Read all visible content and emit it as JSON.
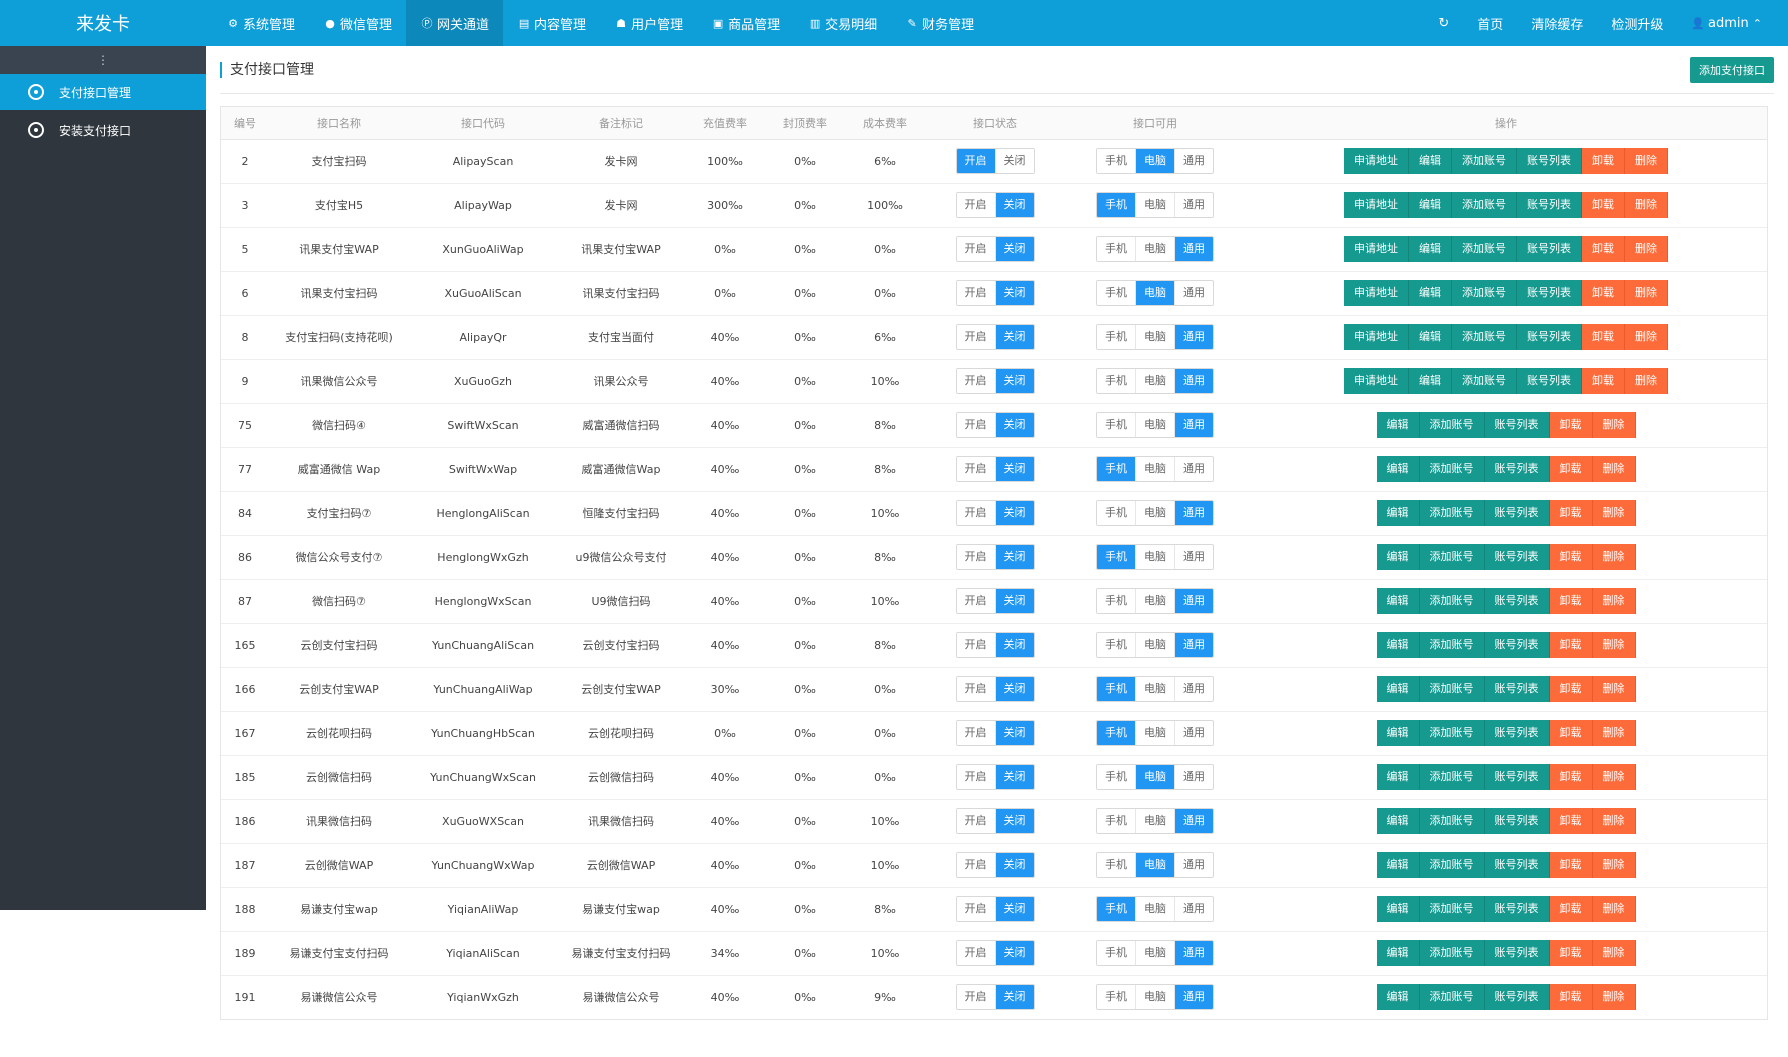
{
  "brand": "来发卡",
  "topnav": [
    {
      "label": "系统管理",
      "icon": "gear-icon",
      "glyph": "⚙",
      "active": false
    },
    {
      "label": "微信管理",
      "icon": "wechat-icon",
      "glyph": "●",
      "active": false
    },
    {
      "label": "网关通道",
      "icon": "paypal-icon",
      "glyph": "Ⓟ",
      "active": true
    },
    {
      "label": "内容管理",
      "icon": "document-icon",
      "glyph": "▤",
      "active": false
    },
    {
      "label": "用户管理",
      "icon": "users-icon",
      "glyph": "☗",
      "active": false
    },
    {
      "label": "商品管理",
      "icon": "shopping-bag-icon",
      "glyph": "▣",
      "active": false
    },
    {
      "label": "交易明细",
      "icon": "bar-chart-icon",
      "glyph": "▥",
      "active": false
    },
    {
      "label": "财务管理",
      "icon": "money-icon",
      "glyph": "✎",
      "active": false
    }
  ],
  "topright": {
    "refresh_glyph": "↻",
    "home": "首页",
    "clear_cache": "清除缓存",
    "check_upgrade": "检测升级",
    "user": "admin",
    "user_glyph": "👤",
    "caret": "⌃"
  },
  "sidebar": {
    "toggle": "⋮",
    "items": [
      {
        "label": "支付接口管理",
        "active": true
      },
      {
        "label": "安装支付接口",
        "active": false
      }
    ]
  },
  "page": {
    "title": "支付接口管理",
    "add_button": "添加支付接口"
  },
  "table": {
    "headers": [
      "编号",
      "接口名称",
      "接口代码",
      "备注标记",
      "充值费率",
      "封顶费率",
      "成本费率",
      "接口状态",
      "接口可用",
      "操作"
    ],
    "status_labels": [
      "开启",
      "关闭"
    ],
    "avail_labels": [
      "手机",
      "电脑",
      "通用"
    ],
    "op_labels": {
      "apply": "申请地址",
      "edit": "编辑",
      "add_account": "添加账号",
      "account_list": "账号列表",
      "uninstall": "卸载",
      "delete": "删除"
    },
    "rows": [
      {
        "id": "2",
        "name": "支付宝扫码",
        "code": "AlipayScan",
        "remark": "发卡网",
        "rate": "100‰",
        "cap": "0‰",
        "cost": "6‰",
        "status": 0,
        "avail": 1,
        "apply": true
      },
      {
        "id": "3",
        "name": "支付宝H5",
        "code": "AlipayWap",
        "remark": "发卡网",
        "rate": "300‰",
        "cap": "0‰",
        "cost": "100‰",
        "status": 1,
        "avail": 0,
        "apply": true
      },
      {
        "id": "5",
        "name": "讯果支付宝WAP",
        "code": "XunGuoAliWap",
        "remark": "讯果支付宝WAP",
        "rate": "0‰",
        "cap": "0‰",
        "cost": "0‰",
        "status": 1,
        "avail": 2,
        "apply": true
      },
      {
        "id": "6",
        "name": "讯果支付宝扫码",
        "code": "XuGuoAliScan",
        "remark": "讯果支付宝扫码",
        "rate": "0‰",
        "cap": "0‰",
        "cost": "0‰",
        "status": 1,
        "avail": 1,
        "apply": true
      },
      {
        "id": "8",
        "name": "支付宝扫码(支持花呗)",
        "code": "AlipayQr",
        "remark": "支付宝当面付",
        "rate": "40‰",
        "cap": "0‰",
        "cost": "6‰",
        "status": 1,
        "avail": 2,
        "apply": true
      },
      {
        "id": "9",
        "name": "讯果微信公众号",
        "code": "XuGuoGzh",
        "remark": "讯果公众号",
        "rate": "40‰",
        "cap": "0‰",
        "cost": "10‰",
        "status": 1,
        "avail": 2,
        "apply": true
      },
      {
        "id": "75",
        "name": "微信扫码④",
        "code": "SwiftWxScan",
        "remark": "威富通微信扫码",
        "rate": "40‰",
        "cap": "0‰",
        "cost": "8‰",
        "status": 1,
        "avail": 2,
        "apply": false
      },
      {
        "id": "77",
        "name": "威富通微信 Wap",
        "code": "SwiftWxWap",
        "remark": "威富通微信Wap",
        "rate": "40‰",
        "cap": "0‰",
        "cost": "8‰",
        "status": 1,
        "avail": 0,
        "apply": false
      },
      {
        "id": "84",
        "name": "支付宝扫码⑦",
        "code": "HenglongAliScan",
        "remark": "恒隆支付宝扫码",
        "rate": "40‰",
        "cap": "0‰",
        "cost": "10‰",
        "status": 1,
        "avail": 2,
        "apply": false
      },
      {
        "id": "86",
        "name": "微信公众号支付⑦",
        "code": "HenglongWxGzh",
        "remark": "u9微信公众号支付",
        "rate": "40‰",
        "cap": "0‰",
        "cost": "8‰",
        "status": 1,
        "avail": 0,
        "apply": false
      },
      {
        "id": "87",
        "name": "微信扫码⑦",
        "code": "HenglongWxScan",
        "remark": "U9微信扫码",
        "rate": "40‰",
        "cap": "0‰",
        "cost": "10‰",
        "status": 1,
        "avail": 2,
        "apply": false
      },
      {
        "id": "165",
        "name": "云创支付宝扫码",
        "code": "YunChuangAliScan",
        "remark": "云创支付宝扫码",
        "rate": "40‰",
        "cap": "0‰",
        "cost": "8‰",
        "status": 1,
        "avail": 2,
        "apply": false
      },
      {
        "id": "166",
        "name": "云创支付宝WAP",
        "code": "YunChuangAliWap",
        "remark": "云创支付宝WAP",
        "rate": "30‰",
        "cap": "0‰",
        "cost": "0‰",
        "status": 1,
        "avail": 0,
        "apply": false
      },
      {
        "id": "167",
        "name": "云创花呗扫码",
        "code": "YunChuangHbScan",
        "remark": "云创花呗扫码",
        "rate": "0‰",
        "cap": "0‰",
        "cost": "0‰",
        "status": 1,
        "avail": 0,
        "apply": false
      },
      {
        "id": "185",
        "name": "云创微信扫码",
        "code": "YunChuangWxScan",
        "remark": "云创微信扫码",
        "rate": "40‰",
        "cap": "0‰",
        "cost": "0‰",
        "status": 1,
        "avail": 1,
        "apply": false
      },
      {
        "id": "186",
        "name": "讯果微信扫码",
        "code": "XuGuoWXScan",
        "remark": "讯果微信扫码",
        "rate": "40‰",
        "cap": "0‰",
        "cost": "10‰",
        "status": 1,
        "avail": 2,
        "apply": false
      },
      {
        "id": "187",
        "name": "云创微信WAP",
        "code": "YunChuangWxWap",
        "remark": "云创微信WAP",
        "rate": "40‰",
        "cap": "0‰",
        "cost": "10‰",
        "status": 1,
        "avail": 1,
        "apply": false
      },
      {
        "id": "188",
        "name": "易谦支付宝wap",
        "code": "YiqianAliWap",
        "remark": "易谦支付宝wap",
        "rate": "40‰",
        "cap": "0‰",
        "cost": "8‰",
        "status": 1,
        "avail": 0,
        "apply": false
      },
      {
        "id": "189",
        "name": "易谦支付宝支付扫码",
        "code": "YiqianAliScan",
        "remark": "易谦支付宝支付扫码",
        "rate": "34‰",
        "cap": "0‰",
        "cost": "10‰",
        "status": 1,
        "avail": 2,
        "apply": false
      },
      {
        "id": "191",
        "name": "易谦微信公众号",
        "code": "YiqianWxGzh",
        "remark": "易谦微信公众号",
        "rate": "40‰",
        "cap": "0‰",
        "cost": "9‰",
        "status": 1,
        "avail": 2,
        "apply": false
      }
    ]
  }
}
